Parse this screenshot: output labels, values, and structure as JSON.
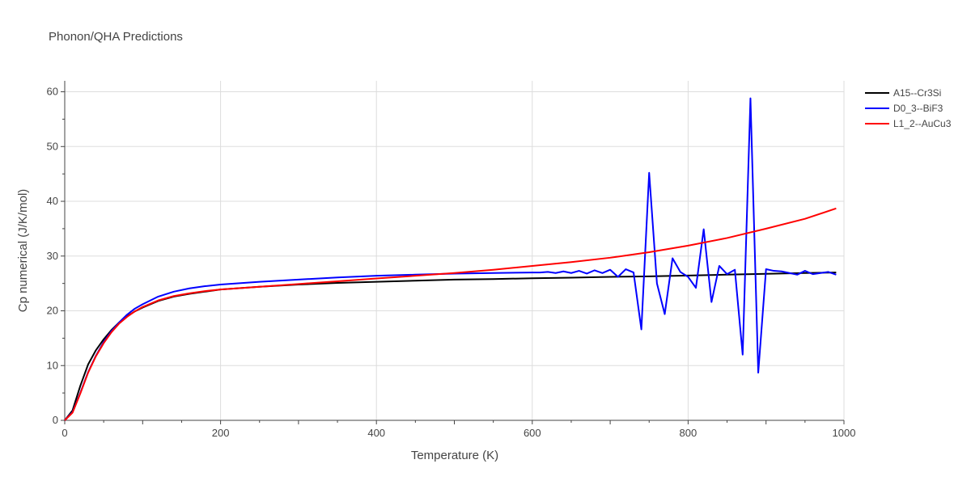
{
  "chart_data": {
    "type": "line",
    "title": "Phonon/QHA Predictions",
    "xlabel": "Temperature (K)",
    "ylabel": "Cp numerical (J/K/mol)",
    "xlim": [
      0,
      1000
    ],
    "ylim": [
      0,
      62
    ],
    "xticks": [
      0,
      200,
      400,
      600,
      800,
      1000
    ],
    "yticks": [
      0,
      10,
      20,
      30,
      40,
      50,
      60
    ],
    "grid": true,
    "legend_position": "top-right",
    "series": [
      {
        "name": "A15--Cr3Si",
        "color": "#000000",
        "x": [
          0,
          10,
          20,
          30,
          40,
          50,
          60,
          70,
          80,
          90,
          100,
          120,
          140,
          160,
          180,
          200,
          250,
          300,
          350,
          400,
          450,
          500,
          550,
          600,
          650,
          700,
          750,
          800,
          850,
          900,
          950,
          990
        ],
        "y": [
          0,
          1.8,
          6.3,
          10.2,
          12.8,
          14.8,
          16.5,
          17.9,
          19.0,
          19.9,
          20.6,
          21.8,
          22.6,
          23.1,
          23.5,
          23.9,
          24.4,
          24.8,
          25.1,
          25.3,
          25.5,
          25.7,
          25.8,
          25.95,
          26.05,
          26.2,
          26.3,
          26.45,
          26.6,
          26.75,
          26.9,
          27.0
        ]
      },
      {
        "name": "D0_3--BiF3",
        "color": "#0000ff",
        "x": [
          0,
          10,
          20,
          30,
          40,
          50,
          60,
          70,
          80,
          90,
          100,
          120,
          140,
          160,
          180,
          200,
          250,
          300,
          350,
          400,
          450,
          500,
          550,
          600,
          610,
          620,
          630,
          640,
          650,
          660,
          670,
          680,
          690,
          700,
          710,
          720,
          730,
          740,
          750,
          760,
          770,
          780,
          790,
          800,
          810,
          820,
          830,
          840,
          850,
          860,
          870,
          880,
          890,
          900,
          910,
          920,
          930,
          940,
          950,
          960,
          970,
          980,
          990
        ],
        "y": [
          0,
          1.5,
          5.0,
          8.8,
          11.8,
          14.3,
          16.3,
          17.9,
          19.3,
          20.4,
          21.2,
          22.6,
          23.5,
          24.1,
          24.5,
          24.8,
          25.3,
          25.7,
          26.1,
          26.4,
          26.6,
          26.8,
          26.9,
          27.0,
          27.0,
          27.1,
          26.9,
          27.2,
          26.9,
          27.3,
          26.8,
          27.4,
          26.9,
          27.5,
          26.2,
          27.6,
          27.0,
          16.6,
          45.2,
          25.0,
          19.4,
          29.6,
          27.1,
          26.2,
          24.2,
          34.9,
          21.6,
          28.2,
          26.7,
          27.5,
          12.0,
          58.8,
          8.7,
          27.6,
          27.3,
          27.2,
          26.9,
          26.6,
          27.3,
          26.7,
          26.9,
          27.1,
          26.6
        ]
      },
      {
        "name": "L1_2--AuCu3",
        "color": "#ff0000",
        "x": [
          0,
          10,
          20,
          30,
          40,
          50,
          60,
          70,
          80,
          90,
          100,
          120,
          140,
          160,
          180,
          200,
          250,
          300,
          350,
          400,
          450,
          500,
          550,
          600,
          650,
          700,
          750,
          800,
          850,
          900,
          950,
          990
        ],
        "y": [
          0,
          1.4,
          4.9,
          8.7,
          11.7,
          14.1,
          16.1,
          17.7,
          18.9,
          19.9,
          20.7,
          21.9,
          22.7,
          23.2,
          23.6,
          23.9,
          24.4,
          24.9,
          25.4,
          25.9,
          26.4,
          26.9,
          27.5,
          28.2,
          28.9,
          29.7,
          30.7,
          31.9,
          33.3,
          35.0,
          36.8,
          38.7
        ]
      }
    ]
  }
}
